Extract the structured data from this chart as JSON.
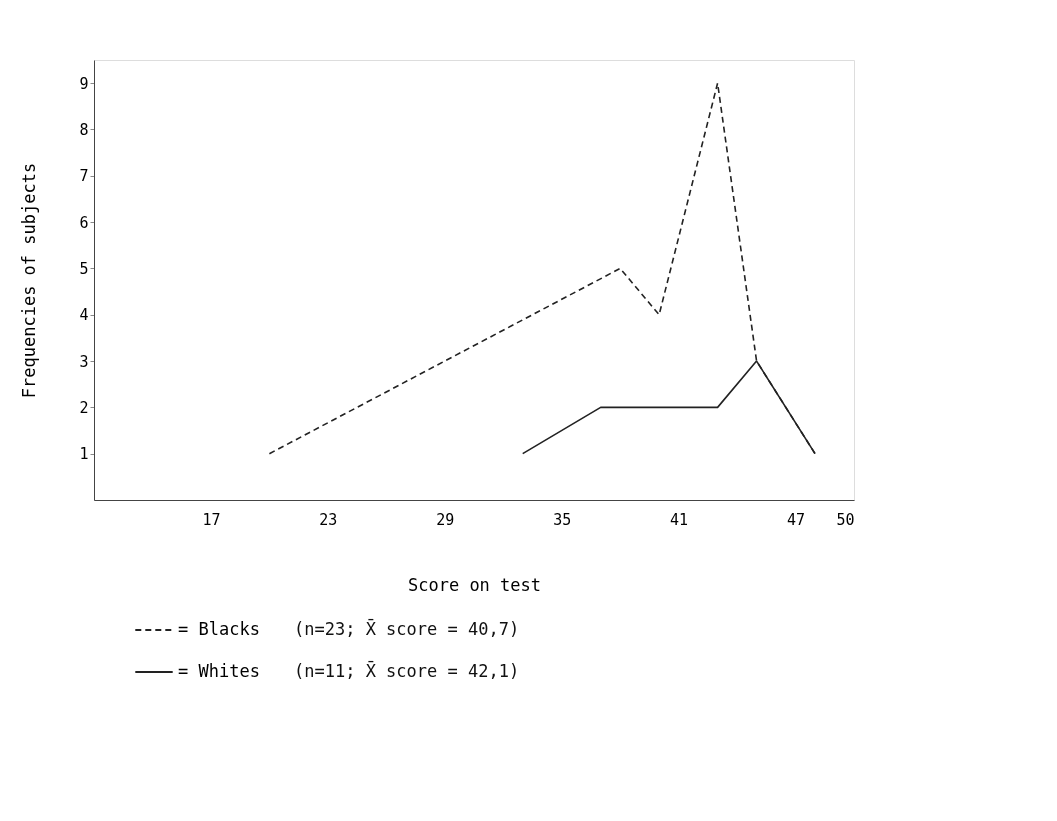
{
  "chart_data": {
    "type": "line",
    "xlabel": "Score on test",
    "ylabel": "Frequencies of subjects",
    "xlim": [
      11,
      50
    ],
    "xticks": [
      17,
      23,
      29,
      35,
      41,
      47,
      50
    ],
    "ylim": [
      0,
      9.5
    ],
    "yticks": [
      1,
      2,
      3,
      4,
      5,
      6,
      7,
      8,
      9
    ],
    "grid": false,
    "legend": "bottom left",
    "marker": "none",
    "series": [
      {
        "name": "= Blacks",
        "color": "#222222",
        "line_style": "dashed",
        "x": [
          20,
          38,
          40,
          43,
          45,
          48
        ],
        "values": [
          1,
          5,
          4,
          9,
          3,
          1
        ]
      },
      {
        "name": "= Whites",
        "color": "#222222",
        "line_style": "solid",
        "x": [
          33,
          37,
          40,
          43,
          45,
          48
        ],
        "values": [
          1,
          2,
          2,
          2,
          3,
          1
        ]
      }
    ],
    "annotations": [
      "(n=23;  X̄ score = 40,7)",
      "(n=11;  X̄ score = 42,1)"
    ]
  }
}
